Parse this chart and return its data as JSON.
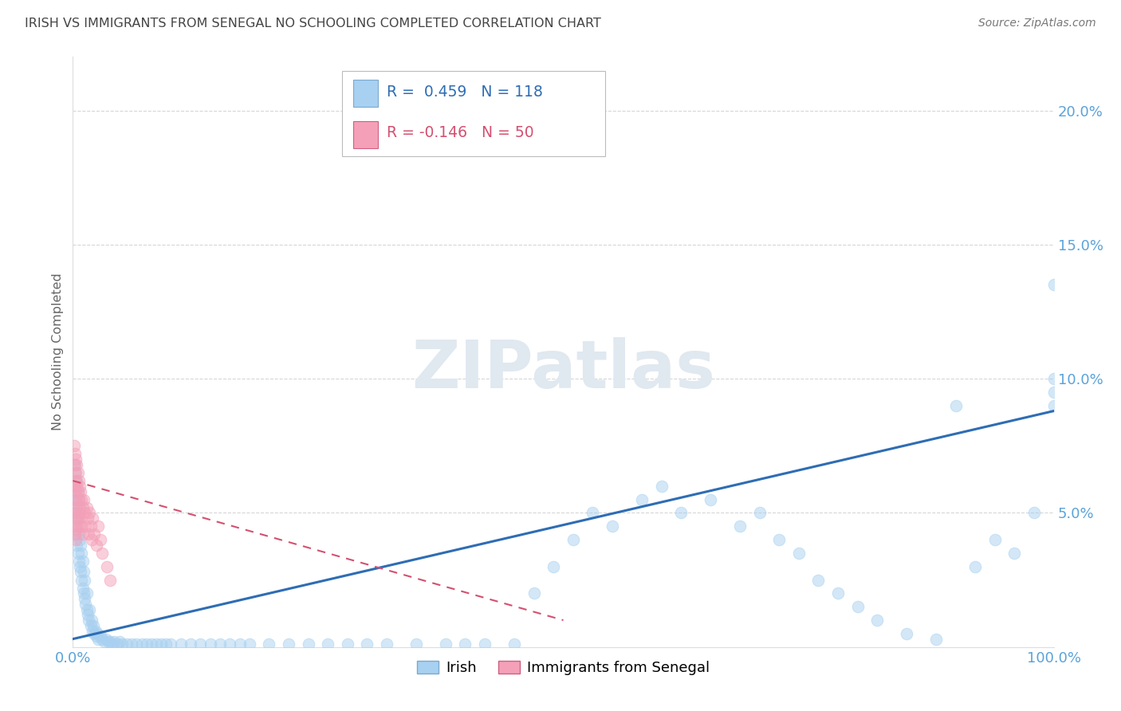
{
  "title": "IRISH VS IMMIGRANTS FROM SENEGAL NO SCHOOLING COMPLETED CORRELATION CHART",
  "source": "Source: ZipAtlas.com",
  "ylabel": "No Schooling Completed",
  "legend_irish": "Irish",
  "legend_senegal": "Immigrants from Senegal",
  "R_irish": 0.459,
  "N_irish": 118,
  "R_senegal": -0.146,
  "N_senegal": 50,
  "xlim": [
    0.0,
    1.0
  ],
  "ylim": [
    0.0,
    0.22
  ],
  "color_irish": "#A8D0F0",
  "color_senegal": "#F4A0B8",
  "trendline_irish": "#2E6DB4",
  "trendline_senegal": "#D45070",
  "background": "#FFFFFF",
  "grid_color": "#CCCCCC",
  "title_color": "#444444",
  "axis_color": "#5BA3D9",
  "irish_scatter_x": [
    0.001,
    0.001,
    0.001,
    0.002,
    0.002,
    0.002,
    0.002,
    0.003,
    0.003,
    0.003,
    0.003,
    0.004,
    0.004,
    0.004,
    0.004,
    0.005,
    0.005,
    0.005,
    0.006,
    0.006,
    0.006,
    0.007,
    0.007,
    0.007,
    0.008,
    0.008,
    0.009,
    0.009,
    0.01,
    0.01,
    0.011,
    0.011,
    0.012,
    0.012,
    0.013,
    0.014,
    0.014,
    0.015,
    0.016,
    0.017,
    0.018,
    0.019,
    0.02,
    0.021,
    0.022,
    0.023,
    0.024,
    0.025,
    0.026,
    0.028,
    0.03,
    0.032,
    0.034,
    0.036,
    0.038,
    0.04,
    0.042,
    0.045,
    0.048,
    0.05,
    0.055,
    0.06,
    0.065,
    0.07,
    0.075,
    0.08,
    0.085,
    0.09,
    0.095,
    0.1,
    0.11,
    0.12,
    0.13,
    0.14,
    0.15,
    0.16,
    0.17,
    0.18,
    0.2,
    0.22,
    0.24,
    0.26,
    0.28,
    0.3,
    0.32,
    0.35,
    0.38,
    0.4,
    0.42,
    0.45,
    0.47,
    0.49,
    0.51,
    0.53,
    0.55,
    0.58,
    0.6,
    0.62,
    0.65,
    0.68,
    0.7,
    0.72,
    0.74,
    0.76,
    0.78,
    0.8,
    0.82,
    0.85,
    0.88,
    0.9,
    0.92,
    0.94,
    0.96,
    0.98,
    1.0,
    1.0,
    1.0,
    1.0
  ],
  "irish_scatter_y": [
    0.05,
    0.055,
    0.06,
    0.048,
    0.055,
    0.062,
    0.068,
    0.042,
    0.05,
    0.058,
    0.065,
    0.038,
    0.045,
    0.055,
    0.062,
    0.035,
    0.048,
    0.058,
    0.032,
    0.042,
    0.055,
    0.03,
    0.04,
    0.052,
    0.028,
    0.038,
    0.025,
    0.035,
    0.022,
    0.032,
    0.02,
    0.028,
    0.018,
    0.025,
    0.016,
    0.014,
    0.02,
    0.012,
    0.01,
    0.014,
    0.008,
    0.01,
    0.006,
    0.008,
    0.005,
    0.006,
    0.004,
    0.005,
    0.003,
    0.004,
    0.003,
    0.002,
    0.003,
    0.002,
    0.002,
    0.001,
    0.002,
    0.001,
    0.002,
    0.001,
    0.001,
    0.001,
    0.001,
    0.001,
    0.001,
    0.001,
    0.001,
    0.001,
    0.001,
    0.001,
    0.001,
    0.001,
    0.001,
    0.001,
    0.001,
    0.001,
    0.001,
    0.001,
    0.001,
    0.001,
    0.001,
    0.001,
    0.001,
    0.001,
    0.001,
    0.001,
    0.001,
    0.001,
    0.001,
    0.001,
    0.02,
    0.03,
    0.04,
    0.05,
    0.045,
    0.055,
    0.06,
    0.05,
    0.055,
    0.045,
    0.05,
    0.04,
    0.035,
    0.025,
    0.02,
    0.015,
    0.01,
    0.005,
    0.003,
    0.09,
    0.03,
    0.04,
    0.035,
    0.05,
    0.095,
    0.1,
    0.135,
    0.09
  ],
  "senegal_scatter_x": [
    0.001,
    0.001,
    0.001,
    0.001,
    0.001,
    0.002,
    0.002,
    0.002,
    0.002,
    0.002,
    0.003,
    0.003,
    0.003,
    0.003,
    0.003,
    0.004,
    0.004,
    0.004,
    0.004,
    0.005,
    0.005,
    0.005,
    0.006,
    0.006,
    0.006,
    0.007,
    0.007,
    0.008,
    0.008,
    0.009,
    0.009,
    0.01,
    0.01,
    0.011,
    0.012,
    0.013,
    0.014,
    0.015,
    0.016,
    0.017,
    0.018,
    0.019,
    0.02,
    0.022,
    0.024,
    0.026,
    0.028,
    0.03,
    0.035,
    0.038
  ],
  "senegal_scatter_y": [
    0.075,
    0.068,
    0.06,
    0.052,
    0.045,
    0.072,
    0.065,
    0.058,
    0.05,
    0.042,
    0.07,
    0.062,
    0.055,
    0.048,
    0.04,
    0.068,
    0.06,
    0.052,
    0.044,
    0.065,
    0.058,
    0.048,
    0.062,
    0.055,
    0.045,
    0.06,
    0.05,
    0.058,
    0.048,
    0.055,
    0.045,
    0.052,
    0.042,
    0.055,
    0.05,
    0.045,
    0.052,
    0.048,
    0.042,
    0.05,
    0.045,
    0.04,
    0.048,
    0.042,
    0.038,
    0.045,
    0.04,
    0.035,
    0.03,
    0.025
  ],
  "irish_trend_x": [
    0.0,
    1.0
  ],
  "irish_trend_y": [
    0.003,
    0.088
  ],
  "senegal_trend_x": [
    0.0,
    0.5
  ],
  "senegal_trend_y": [
    0.062,
    0.01
  ]
}
